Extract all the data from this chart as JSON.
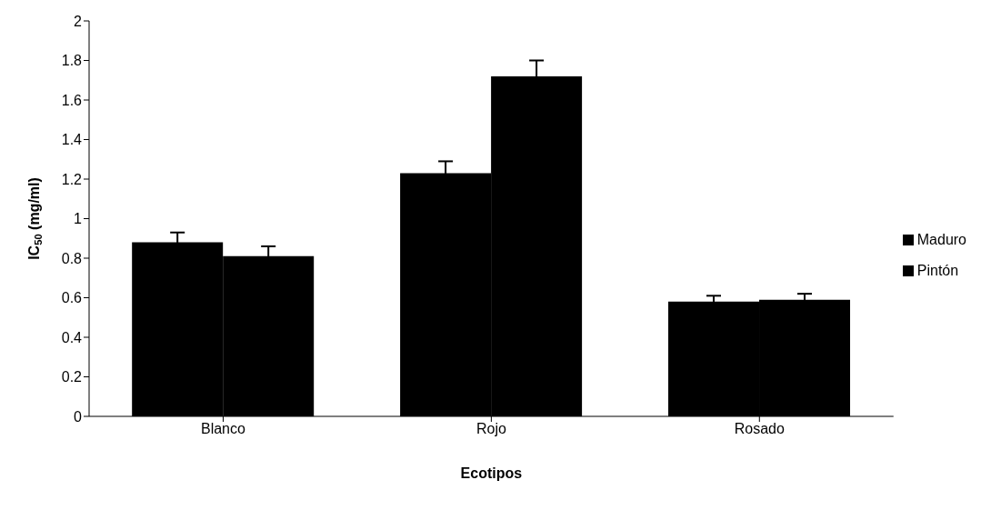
{
  "chart_data": {
    "type": "bar",
    "xlabel": "Ecotipos",
    "ylabel": "IC$_{50}$ (mg/ml)",
    "categories": [
      "Blanco",
      "Rojo",
      "Rosado"
    ],
    "series": [
      {
        "name": "Maduro",
        "color": "#000000",
        "values": [
          0.88,
          1.23,
          0.58
        ],
        "errors": [
          0.05,
          0.06,
          0.03
        ]
      },
      {
        "name": "Pintón",
        "color": "#000000",
        "values": [
          0.81,
          1.72,
          0.59
        ],
        "errors": [
          0.05,
          0.08,
          0.03
        ]
      }
    ],
    "ylim": [
      0,
      2
    ],
    "yticks": [
      0,
      0.2,
      0.4,
      0.6,
      0.8,
      1,
      1.2,
      1.4,
      1.6,
      1.8,
      2
    ],
    "grid": false,
    "legend": "right"
  }
}
